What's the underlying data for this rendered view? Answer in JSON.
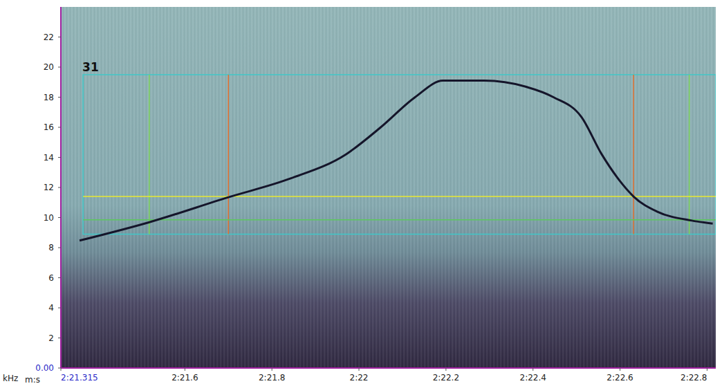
{
  "chart_data": {
    "type": "line",
    "x_label": "m:s",
    "y_label": "kHz",
    "xlim": [
      141.315,
      142.82
    ],
    "xticks": [
      {
        "value": 141.315,
        "label": "2:21.315"
      },
      {
        "value": 141.6,
        "label": "2:21.6"
      },
      {
        "value": 141.8,
        "label": "2:21.8"
      },
      {
        "value": 142.0,
        "label": "2:22"
      },
      {
        "value": 142.2,
        "label": "2:22.2"
      },
      {
        "value": 142.4,
        "label": "2:22.4"
      },
      {
        "value": 142.6,
        "label": "2:22.6"
      },
      {
        "value": 142.8,
        "label": "2:22.8"
      }
    ],
    "ylim": [
      0,
      24
    ],
    "yticks": [
      {
        "value": 0,
        "label": "0.00"
      },
      2,
      4,
      6,
      8,
      10,
      12,
      14,
      16,
      18,
      20,
      22
    ],
    "grid": false,
    "x": [
      141.358,
      141.517,
      141.7,
      141.843,
      141.97,
      142.05,
      142.129,
      142.193,
      142.288,
      142.383,
      142.447,
      142.511,
      142.558,
      142.606,
      142.631,
      142.685,
      142.765,
      142.813
    ],
    "values": [
      8.47,
      9.68,
      11.35,
      12.6,
      14.2,
      16.0,
      18.0,
      19.1,
      19.1,
      18.7,
      18.0,
      16.7,
      14.2,
      12.2,
      11.4,
      10.4,
      9.8,
      9.6
    ],
    "color": "#15152a",
    "selection": {
      "label": "31",
      "xlim": [
        141.366,
        142.82
      ],
      "ylim": [
        8.9,
        19.5
      ],
      "color": "#40c8c8",
      "lines": [
        {
          "axis": "x",
          "value": 141.518,
          "color": "#7fd65a"
        },
        {
          "axis": "x",
          "value": 142.759,
          "color": "#7fd65a"
        },
        {
          "axis": "x",
          "value": 141.7,
          "color": "#e07030"
        },
        {
          "axis": "x",
          "value": 142.631,
          "color": "#e07030"
        },
        {
          "axis": "y",
          "value": 11.4,
          "color": "#e8e830"
        },
        {
          "axis": "y",
          "value": 9.85,
          "color": "#5cc85c"
        }
      ]
    }
  }
}
